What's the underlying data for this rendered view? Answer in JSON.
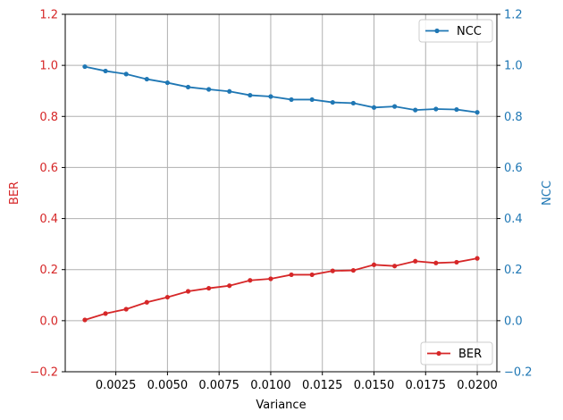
{
  "chart_data": {
    "type": "line",
    "xlabel": "Variance",
    "x": [
      0.001,
      0.002,
      0.003,
      0.004,
      0.005,
      0.006,
      0.007,
      0.008,
      0.009,
      0.01,
      0.011,
      0.012,
      0.013,
      0.014,
      0.015,
      0.016,
      0.017,
      0.018,
      0.019,
      0.02
    ],
    "x_ticks": [
      0.0025,
      0.005,
      0.0075,
      0.01,
      0.0125,
      0.015,
      0.0175,
      0.02
    ],
    "x_tick_labels": [
      "0.0025",
      "0.0050",
      "0.0075",
      "0.0100",
      "0.0125",
      "0.0150",
      "0.0175",
      "0.0200"
    ],
    "xlim": [
      5e-05,
      0.02095
    ],
    "left_axis": {
      "label": "BER",
      "color": "#d62728",
      "ylim": [
        -0.2,
        1.2
      ],
      "ticks": [
        -0.2,
        0.0,
        0.2,
        0.4,
        0.6,
        0.8,
        1.0,
        1.2
      ],
      "tick_labels": [
        "−0.2",
        "0.0",
        "0.2",
        "0.4",
        "0.6",
        "0.8",
        "1.0",
        "1.2"
      ]
    },
    "right_axis": {
      "label": "NCC",
      "color": "#1f77b4",
      "ylim": [
        -0.2,
        1.2
      ],
      "ticks": [
        -0.2,
        0.0,
        0.2,
        0.4,
        0.6,
        0.8,
        1.0,
        1.2
      ],
      "tick_labels": [
        "−0.2",
        "0.0",
        "0.2",
        "0.4",
        "0.6",
        "0.8",
        "1.0",
        "1.2"
      ]
    },
    "grid": true,
    "series": [
      {
        "name": "NCC",
        "axis": "right",
        "color": "#1f77b4",
        "legend_position": "upper-right",
        "values": [
          0.995,
          0.978,
          0.966,
          0.946,
          0.932,
          0.915,
          0.906,
          0.898,
          0.883,
          0.878,
          0.866,
          0.866,
          0.855,
          0.852,
          0.835,
          0.839,
          0.825,
          0.829,
          0.827,
          0.816
        ]
      },
      {
        "name": "BER",
        "axis": "left",
        "color": "#d62728",
        "legend_position": "lower-right",
        "values": [
          0.003,
          0.028,
          0.045,
          0.072,
          0.092,
          0.115,
          0.127,
          0.137,
          0.158,
          0.164,
          0.18,
          0.18,
          0.195,
          0.197,
          0.219,
          0.214,
          0.233,
          0.226,
          0.229,
          0.244
        ]
      }
    ]
  }
}
